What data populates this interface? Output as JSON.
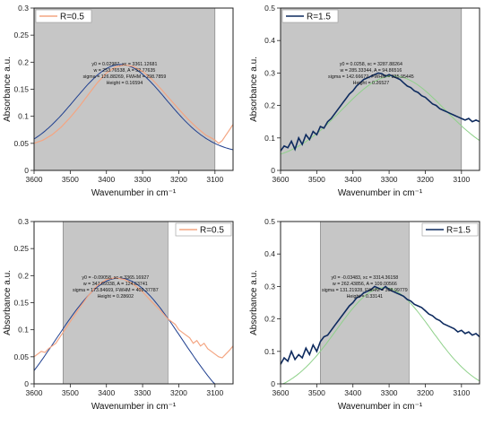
{
  "chart_data": [
    {
      "type": "line",
      "panel": "top-left",
      "xlabel": "Wavenumber in cm⁻¹",
      "ylabel": "Absorbance a.u.",
      "xlim": [
        3600,
        3050
      ],
      "ylim": [
        0,
        0.3
      ],
      "xticks": [
        3600,
        3500,
        3400,
        3300,
        3200,
        3100
      ],
      "yticks": [
        0,
        0.05,
        0.1,
        0.15,
        0.2,
        0.25,
        0.3
      ],
      "ytick_labels": [
        "0",
        "0.05",
        "0.1",
        "0.15",
        "0.2",
        "0.25",
        "0.3"
      ],
      "shaded_region": [
        3600,
        3100
      ],
      "legend": {
        "label": "R=0.5",
        "position": "top-left"
      },
      "series": [
        {
          "name": "R=0.5",
          "color": "#f4a582",
          "x": [
            3600,
            3575,
            3550,
            3525,
            3500,
            3475,
            3450,
            3425,
            3400,
            3375,
            3350,
            3325,
            3300,
            3275,
            3250,
            3225,
            3200,
            3175,
            3150,
            3125,
            3110,
            3100,
            3090,
            3080,
            3070,
            3060,
            3050
          ],
          "y": [
            0.05,
            0.056,
            0.066,
            0.08,
            0.098,
            0.118,
            0.14,
            0.162,
            0.18,
            0.191,
            0.195,
            0.192,
            0.183,
            0.169,
            0.151,
            0.132,
            0.113,
            0.095,
            0.079,
            0.065,
            0.06,
            0.056,
            0.05,
            0.055,
            0.065,
            0.075,
            0.085
          ]
        }
      ],
      "fit": {
        "color": "#1f3f8f",
        "y0": 0.02987,
        "xc": 3361.12681,
        "w": 253.76538,
        "A": 52.77635,
        "height": 0.16594
      },
      "annotation": [
        "y0 = 0.02987, xc = 3361.12681",
        "w = 253.76538, A = 52.77635",
        "sigma = 126.88269, FWHM = 298.7859",
        "Height = 0.16594"
      ]
    },
    {
      "type": "line",
      "panel": "top-right",
      "xlabel": "Wavenumber in cm⁻¹",
      "ylabel": "Absorbance a.u.",
      "xlim": [
        3600,
        3050
      ],
      "ylim": [
        0,
        0.5
      ],
      "xticks": [
        3600,
        3500,
        3400,
        3300,
        3200,
        3100
      ],
      "yticks": [
        0,
        0.1,
        0.2,
        0.3,
        0.4,
        0.5
      ],
      "ytick_labels": [
        "0",
        "0.1",
        "0.2",
        "0.3",
        "0.4",
        "0.5"
      ],
      "shaded_region": [
        3600,
        3100
      ],
      "legend": {
        "label": "R=1.5",
        "position": "top-left"
      },
      "series": [
        {
          "name": "R=1.5",
          "color": "#0d2a5e",
          "x": [
            3600,
            3590,
            3580,
            3570,
            3560,
            3550,
            3540,
            3530,
            3520,
            3510,
            3500,
            3490,
            3480,
            3470,
            3460,
            3450,
            3440,
            3430,
            3420,
            3410,
            3400,
            3390,
            3380,
            3370,
            3360,
            3350,
            3340,
            3330,
            3320,
            3310,
            3300,
            3290,
            3280,
            3270,
            3260,
            3250,
            3240,
            3230,
            3220,
            3210,
            3200,
            3190,
            3180,
            3170,
            3160,
            3150,
            3140,
            3130,
            3120,
            3110,
            3100,
            3090,
            3080,
            3070,
            3060,
            3050
          ],
          "y": [
            0.06,
            0.075,
            0.07,
            0.09,
            0.065,
            0.1,
            0.08,
            0.11,
            0.095,
            0.12,
            0.11,
            0.135,
            0.13,
            0.15,
            0.16,
            0.175,
            0.19,
            0.205,
            0.22,
            0.235,
            0.245,
            0.26,
            0.27,
            0.28,
            0.285,
            0.29,
            0.295,
            0.3,
            0.298,
            0.29,
            0.295,
            0.29,
            0.285,
            0.28,
            0.27,
            0.26,
            0.255,
            0.245,
            0.24,
            0.23,
            0.225,
            0.215,
            0.205,
            0.2,
            0.19,
            0.185,
            0.18,
            0.175,
            0.17,
            0.165,
            0.16,
            0.155,
            0.16,
            0.15,
            0.155,
            0.15
          ]
        }
      ],
      "fit": {
        "color": "#8fd18a",
        "y0": 0.0258,
        "xc": 3287.88264,
        "w": 285.33344,
        "A": 94.86516,
        "height": 0.26527
      },
      "annotation": [
        "y0 = 0.0258, xc = 3287.88264",
        "w = 285.33344, A = 94.86516",
        "sigma = 142.66672, FWHM = 335.95445",
        "Height = 0.26527"
      ]
    },
    {
      "type": "line",
      "panel": "bottom-left",
      "xlabel": "Wavenumber in cm⁻¹",
      "ylabel": "Absorbance a.u.",
      "xlim": [
        3600,
        3050
      ],
      "ylim": [
        0,
        0.3
      ],
      "xticks": [
        3600,
        3500,
        3400,
        3300,
        3200,
        3100
      ],
      "yticks": [
        0,
        0.05,
        0.1,
        0.15,
        0.2,
        0.25,
        0.3
      ],
      "ytick_labels": [
        "0",
        "0.05",
        "0.1",
        "0.15",
        "0.2",
        "0.25",
        "0.3"
      ],
      "shaded_region": [
        3520,
        3230
      ],
      "legend": {
        "label": "R=0.5",
        "position": "top-right"
      },
      "series": [
        {
          "name": "R=0.5",
          "color": "#f4a582",
          "x": [
            3600,
            3590,
            3580,
            3570,
            3560,
            3550,
            3540,
            3530,
            3520,
            3500,
            3475,
            3450,
            3425,
            3400,
            3375,
            3350,
            3325,
            3300,
            3275,
            3250,
            3230,
            3220,
            3210,
            3200,
            3190,
            3180,
            3170,
            3160,
            3150,
            3140,
            3130,
            3120,
            3110,
            3100,
            3090,
            3080,
            3070,
            3060,
            3050
          ],
          "y": [
            0.05,
            0.055,
            0.06,
            0.058,
            0.065,
            0.07,
            0.075,
            0.085,
            0.095,
            0.115,
            0.14,
            0.163,
            0.182,
            0.193,
            0.196,
            0.193,
            0.184,
            0.17,
            0.152,
            0.135,
            0.12,
            0.115,
            0.11,
            0.1,
            0.095,
            0.09,
            0.085,
            0.075,
            0.08,
            0.07,
            0.075,
            0.065,
            0.06,
            0.055,
            0.05,
            0.048,
            0.055,
            0.062,
            0.07
          ]
        }
      ],
      "fit": {
        "color": "#1f3f8f",
        "y0": -0.09058,
        "xc": 3365.16927,
        "w": 347.69338,
        "A": 124.63741,
        "height": 0.28602
      },
      "annotation": [
        "y0 = -0.09058, xc = 3365.16927",
        "w = 347.69338, A = 124.63741",
        "sigma = 173.84669, FWHM = 409.37787",
        "Height = 0.28602"
      ]
    },
    {
      "type": "line",
      "panel": "bottom-right",
      "xlabel": "Wavenumber in cm⁻¹",
      "ylabel": "Absorbance a.u.",
      "xlim": [
        3600,
        3050
      ],
      "ylim": [
        0,
        0.5
      ],
      "xticks": [
        3600,
        3500,
        3400,
        3300,
        3200,
        3100
      ],
      "yticks": [
        0,
        0.1,
        0.2,
        0.3,
        0.4,
        0.5
      ],
      "ytick_labels": [
        "0",
        "0.1",
        "0.2",
        "0.3",
        "0.4",
        "0.5"
      ],
      "shaded_region": [
        3490,
        3245
      ],
      "legend": {
        "label": "R=1.5",
        "position": "top-right"
      },
      "series": [
        {
          "name": "R=1.5",
          "color": "#0d2a5e",
          "x": [
            3600,
            3590,
            3580,
            3570,
            3560,
            3550,
            3540,
            3530,
            3520,
            3510,
            3500,
            3490,
            3480,
            3470,
            3460,
            3450,
            3440,
            3430,
            3420,
            3410,
            3400,
            3390,
            3380,
            3370,
            3360,
            3350,
            3340,
            3330,
            3320,
            3310,
            3300,
            3290,
            3280,
            3270,
            3260,
            3250,
            3240,
            3230,
            3220,
            3210,
            3200,
            3190,
            3180,
            3170,
            3160,
            3150,
            3140,
            3130,
            3120,
            3110,
            3100,
            3090,
            3080,
            3070,
            3060,
            3050
          ],
          "y": [
            0.06,
            0.08,
            0.07,
            0.1,
            0.075,
            0.09,
            0.08,
            0.11,
            0.09,
            0.12,
            0.1,
            0.13,
            0.145,
            0.15,
            0.165,
            0.18,
            0.195,
            0.21,
            0.225,
            0.24,
            0.25,
            0.265,
            0.27,
            0.28,
            0.285,
            0.29,
            0.3,
            0.295,
            0.29,
            0.3,
            0.29,
            0.285,
            0.28,
            0.275,
            0.27,
            0.26,
            0.255,
            0.245,
            0.24,
            0.235,
            0.225,
            0.215,
            0.21,
            0.2,
            0.195,
            0.185,
            0.18,
            0.175,
            0.17,
            0.16,
            0.165,
            0.155,
            0.16,
            0.15,
            0.155,
            0.145
          ]
        }
      ],
      "fit": {
        "color": "#8fd18a",
        "y0": -0.03483,
        "xc": 3314.36158,
        "w": 262.43856,
        "A": 109.00566,
        "height": 0.33141
      },
      "annotation": [
        "y0 = -0.03483, xc = 3314.36158",
        "w = 262.43856, A = 109.00566",
        "sigma = 131.21928, FWHM = 308.99779",
        "Height = 0.33141"
      ]
    }
  ],
  "style": {
    "shade_color": "#c6c6c6",
    "axis_color": "#222222",
    "background": "#ffffff"
  }
}
